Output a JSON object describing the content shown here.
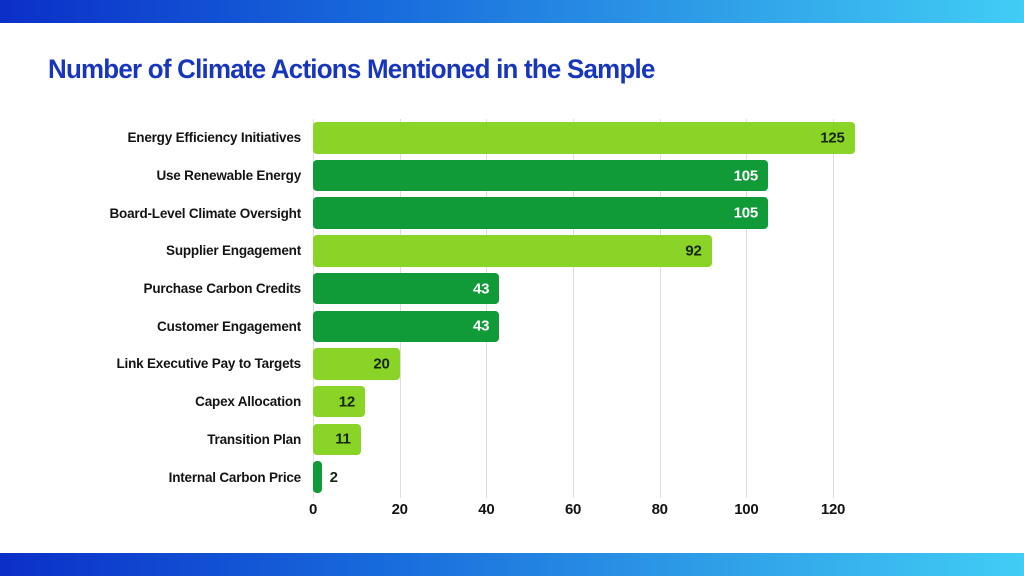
{
  "slide": {
    "title": "Number of Climate Actions Mentioned in the Sample",
    "title_color": "#1836BD",
    "accent_gradient_start": "#0B2FC8",
    "accent_gradient_end": "#41CDF5"
  },
  "chart_data": {
    "type": "bar",
    "orientation": "horizontal",
    "title": "Number of Climate Actions Mentioned in the Sample",
    "categories": [
      "Energy Efficiency Initiatives",
      "Use Renewable Energy",
      "Board-Level Climate Oversight",
      "Supplier Engagement",
      "Purchase Carbon Credits",
      "Customer Engagement",
      "Link Executive Pay to Targets",
      "Capex Allocation",
      "Transition Plan",
      "Internal Carbon Price"
    ],
    "values": [
      125,
      105,
      105,
      92,
      43,
      43,
      20,
      12,
      11,
      2
    ],
    "bar_color_keys": [
      "light",
      "dark",
      "dark",
      "light",
      "dark",
      "dark",
      "light",
      "light",
      "light",
      "dark"
    ],
    "bar_palette": {
      "light": "#8AD427",
      "dark": "#119B38"
    },
    "value_label_inside": [
      true,
      true,
      true,
      true,
      true,
      true,
      true,
      true,
      true,
      false
    ],
    "value_label_colors": {
      "on_light": "#152612",
      "on_dark": "#FFFFFF",
      "outside": "#152612"
    },
    "x_ticks": [
      0,
      20,
      40,
      60,
      80,
      100,
      120
    ],
    "xlim": [
      0,
      135
    ],
    "grid": true,
    "gridline_color": "#DEDEDE",
    "xlabel": "",
    "ylabel": ""
  }
}
